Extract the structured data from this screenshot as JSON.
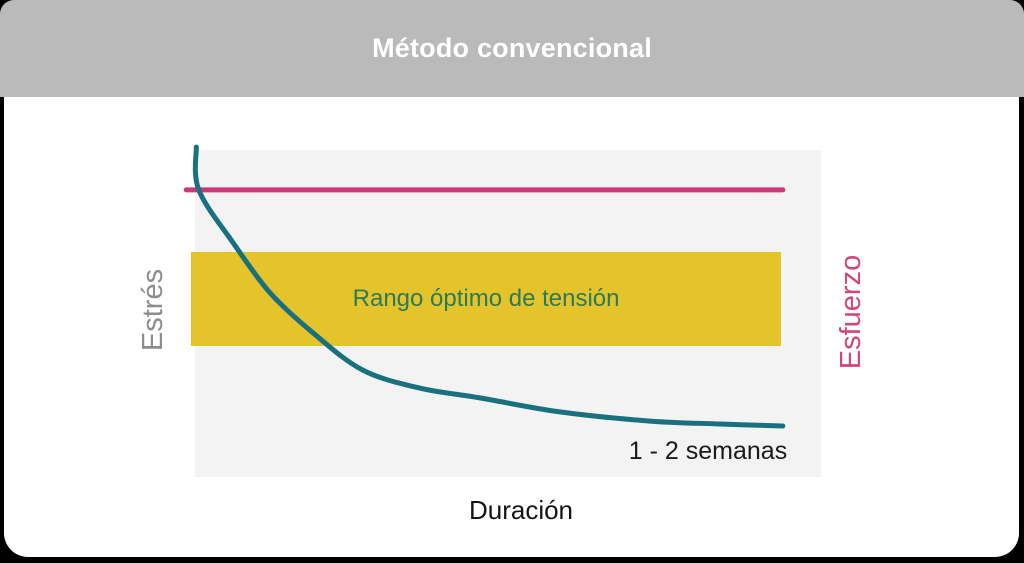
{
  "window": {
    "background": "#000000"
  },
  "header": {
    "title": "Método convencional",
    "background": "#bababa",
    "text_color": "#ffffff"
  },
  "chart_data": {
    "type": "line",
    "title": "Método convencional",
    "xlabel": "Duración",
    "y_axis_left": {
      "label": "Estrés",
      "color": "#8d8d8d"
    },
    "y_axis_right": {
      "label": "Esfuerzo",
      "color": "#d2457f"
    },
    "axis_tick_labels": false,
    "grid": false,
    "legend_position": "none",
    "plot_background": "#f3f3f4",
    "x_range_normalized": [
      0,
      1
    ],
    "y_range_normalized": [
      0,
      1
    ],
    "series": [
      {
        "name": "Estrés",
        "type": "curve",
        "shape": "exponential-decay",
        "color": "#19707f",
        "stroke_width": 5,
        "points": [
          {
            "x": 0.002,
            "y": 1.009
          },
          {
            "x": 0.006,
            "y": 0.878
          },
          {
            "x": 0.061,
            "y": 0.716
          },
          {
            "x": 0.12,
            "y": 0.563
          },
          {
            "x": 0.189,
            "y": 0.44
          },
          {
            "x": 0.268,
            "y": 0.327
          },
          {
            "x": 0.359,
            "y": 0.272
          },
          {
            "x": 0.455,
            "y": 0.242
          },
          {
            "x": 0.583,
            "y": 0.199
          },
          {
            "x": 0.727,
            "y": 0.171
          },
          {
            "x": 0.839,
            "y": 0.162
          },
          {
            "x": 0.939,
            "y": 0.156
          }
        ]
      },
      {
        "name": "Esfuerzo",
        "type": "constant-line",
        "color": "#cc3978",
        "stroke_width": 5,
        "level": 0.878,
        "x_start": -0.014,
        "x_end": 0.939
      }
    ],
    "optimal_range": {
      "label": "Rango óptimo de tensión",
      "label_color": "#2c7b58",
      "color": "#e5c32b",
      "x_start": -0.006,
      "x_end": 0.936,
      "y_bottom": 0.401,
      "y_top": 0.688
    },
    "annotations": [
      {
        "text": "1 - 2 semanas",
        "color": "#1a1a1d",
        "position": "right end of stress curve plateau"
      }
    ]
  }
}
